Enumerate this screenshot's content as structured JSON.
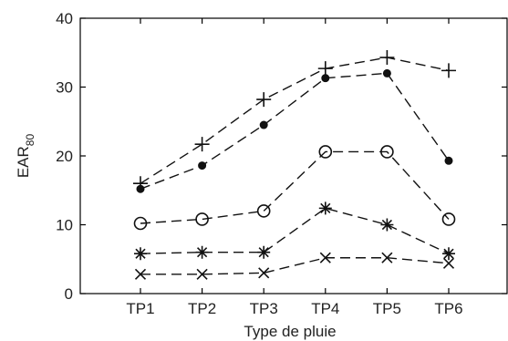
{
  "chart_data": {
    "type": "line",
    "title": "",
    "xlabel": "Type de pluie",
    "ylabel_main": "EAR",
    "ylabel_sub": "80",
    "categories": [
      "TP1",
      "TP2",
      "TP3",
      "TP4",
      "TP5",
      "TP6"
    ],
    "ylim": [
      0,
      40
    ],
    "yticks": [
      "0",
      "10",
      "20",
      "30",
      "40"
    ],
    "grid": false,
    "legend": "none",
    "series": [
      {
        "marker": "plus",
        "values": [
          16,
          21.7,
          28.2,
          32.7,
          34.3,
          32.4
        ]
      },
      {
        "marker": "filled-circle",
        "values": [
          15.2,
          18.6,
          24.5,
          31.3,
          32.0,
          19.3
        ]
      },
      {
        "marker": "open-circle",
        "values": [
          10.2,
          10.8,
          12.0,
          20.6,
          20.6,
          10.8
        ]
      },
      {
        "marker": "star",
        "values": [
          5.8,
          6.0,
          6.0,
          12.4,
          10.0,
          5.8
        ]
      },
      {
        "marker": "x",
        "values": [
          2.8,
          2.8,
          3.0,
          5.2,
          5.2,
          4.4
        ]
      }
    ]
  }
}
